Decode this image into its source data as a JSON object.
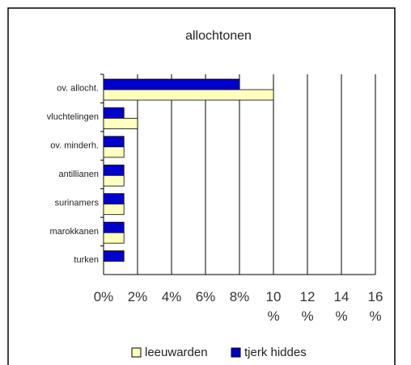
{
  "chart_data": {
    "type": "bar",
    "orientation": "horizontal",
    "title": "allochtonen",
    "categories": [
      "ov. allocht.",
      "vluchtelingen",
      "ov. minderh.",
      "antillianen",
      "surinamers",
      "marokkanen",
      "turken"
    ],
    "series": [
      {
        "name": "leeuwarden",
        "color": "#ffffc0",
        "values": [
          10,
          2,
          1.2,
          1.2,
          1.2,
          1.2,
          0
        ]
      },
      {
        "name": "tjerk hiddes",
        "color": "#0000cc",
        "values": [
          8,
          1.2,
          1.2,
          1.2,
          1.2,
          1.2,
          1.2
        ]
      }
    ],
    "xlim": [
      0,
      16
    ],
    "xticks": [
      {
        "value": 0,
        "label": "0%"
      },
      {
        "value": 2,
        "label": "2%"
      },
      {
        "value": 4,
        "label": "4%"
      },
      {
        "value": 6,
        "label": "6%"
      },
      {
        "value": 8,
        "label": "8%"
      },
      {
        "value": 10,
        "label": "10 %"
      },
      {
        "value": 12,
        "label": "12 %"
      },
      {
        "value": 14,
        "label": "14 %"
      },
      {
        "value": 16,
        "label": "16 %"
      }
    ],
    "grid": true,
    "legend": "bottom"
  }
}
